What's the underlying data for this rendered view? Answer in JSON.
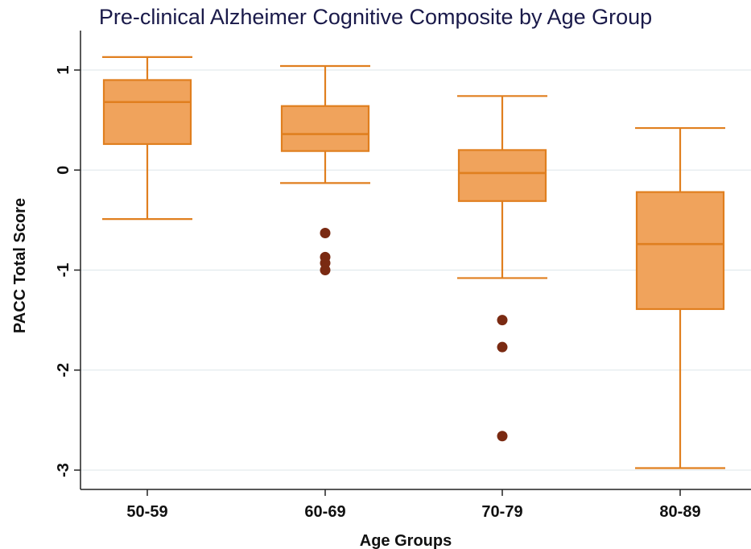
{
  "chart_data": {
    "type": "box",
    "title": "Pre-clinical Alzheimer Cognitive Composite by Age Group",
    "xlabel": "Age Groups",
    "ylabel": "PACC Total Score",
    "ylim": [
      -3.2,
      1.3
    ],
    "yticks": [
      1,
      0,
      -1,
      -2,
      -3
    ],
    "grid": true,
    "colors": {
      "box": "#f0a35c",
      "stroke": "#e07f1f",
      "outlier": "#7a2a12",
      "grid": "#dde6ea"
    },
    "categories": [
      "50-59",
      "60-69",
      "70-79",
      "80-89"
    ],
    "boxes": [
      {
        "category": "50-59",
        "whisker_low": -0.49,
        "q1": 0.26,
        "median": 0.68,
        "q3": 0.9,
        "whisker_high": 1.13,
        "outliers": []
      },
      {
        "category": "60-69",
        "whisker_low": -0.13,
        "q1": 0.19,
        "median": 0.36,
        "q3": 0.64,
        "whisker_high": 1.04,
        "outliers": [
          -0.63,
          -0.87,
          -0.93,
          -1.0
        ]
      },
      {
        "category": "70-79",
        "whisker_low": -1.08,
        "q1": -0.31,
        "median": -0.03,
        "q3": 0.2,
        "whisker_high": 0.74,
        "outliers": [
          -1.5,
          -1.77,
          -2.66
        ]
      },
      {
        "category": "80-89",
        "whisker_low": -2.98,
        "q1": -1.39,
        "median": -0.74,
        "q3": -0.22,
        "whisker_high": 0.42,
        "outliers": []
      }
    ]
  }
}
